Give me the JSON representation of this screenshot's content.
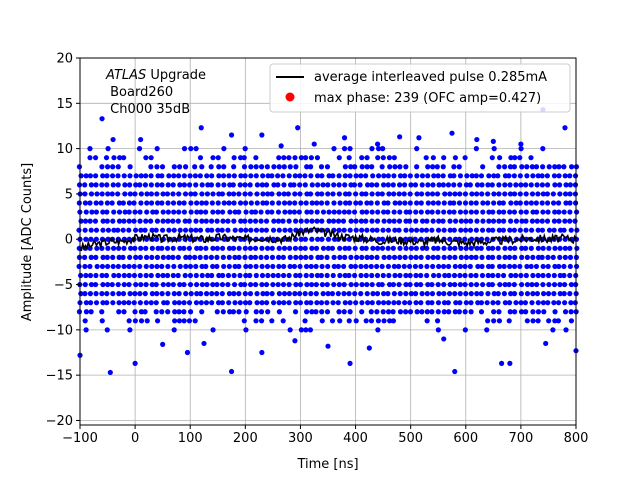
{
  "chart_data": {
    "type": "scatter",
    "xlabel": "Time [ns]",
    "ylabel": "Amplitude [ADC Counts]",
    "xlim": [
      -100,
      800
    ],
    "ylim": [
      -20.5,
      20
    ],
    "xticks": [
      -100,
      0,
      100,
      200,
      300,
      400,
      500,
      600,
      700,
      800
    ],
    "yticks": [
      -20,
      -15,
      -10,
      -5,
      0,
      5,
      10,
      15,
      20
    ],
    "grid": true,
    "legend_position": "top-right",
    "annotation": {
      "italic": "ATLAS",
      "rest": " Upgrade",
      "line2": " Board260",
      "line3": " Ch000 35dB"
    },
    "colors": {
      "samples": "#0000ff",
      "average": "#000000",
      "max_phase": "#ff0000"
    },
    "series": [
      {
        "name": "average interleaved pulse 0.285mA",
        "kind": "line",
        "color": "#000000",
        "x": [
          -100,
          -75,
          -50,
          -25,
          0,
          25,
          50,
          75,
          100,
          125,
          150,
          175,
          200,
          225,
          250,
          275,
          300,
          325,
          350,
          375,
          400,
          425,
          450,
          475,
          500,
          525,
          550,
          575,
          600,
          625,
          650,
          675,
          700,
          725,
          750,
          775,
          800
        ],
        "y": [
          -1.0,
          -0.6,
          -0.3,
          -0.2,
          0.1,
          0.3,
          0.0,
          0.2,
          0.1,
          0.0,
          0.2,
          0.1,
          0.0,
          0.2,
          0.1,
          0.0,
          0.8,
          1.0,
          0.6,
          0.3,
          0.2,
          0.0,
          -0.2,
          -0.1,
          -0.2,
          -0.3,
          -0.1,
          -0.3,
          -0.4,
          -0.3,
          -0.2,
          -0.1,
          0.0,
          0.1,
          0.0,
          0.1,
          0.0
        ]
      },
      {
        "name": "max phase: 239 (OFC amp=0.427)",
        "kind": "points",
        "color": "#ff0000",
        "x": [],
        "y": []
      },
      {
        "name": "",
        "kind": "samples",
        "color": "#0000ff",
        "x_step_ns": 10,
        "band_levels": [
          -10,
          -9,
          -8,
          -7,
          -6,
          -5,
          -4,
          -3,
          -2,
          -1,
          0,
          1,
          2,
          3,
          4,
          5,
          6,
          7,
          8,
          9,
          10
        ],
        "outliers": {
          "x": [
            -60,
            -40,
            40,
            120,
            175,
            230,
            295,
            325,
            380,
            480,
            515,
            575,
            620,
            650,
            740,
            780,
            -100,
            -45,
            0,
            50,
            95,
            175,
            230,
            290,
            390,
            425,
            580,
            665,
            680,
            745,
            800,
            10,
            125,
            265,
            350,
            440,
            560,
            700
          ],
          "y": [
            13.3,
            11.0,
            10.0,
            12.3,
            11.5,
            11.5,
            12.3,
            10.5,
            11.2,
            11.3,
            11.2,
            11.7,
            11.0,
            10.8,
            14.3,
            12.3,
            -12.8,
            -14.7,
            -13.7,
            -11.6,
            -12.5,
            -14.6,
            -12.5,
            -11.2,
            -13.7,
            -12.0,
            -14.6,
            -13.7,
            -13.7,
            -11.5,
            -12.3,
            11.0,
            -11.5,
            10.3,
            -11.8,
            10.5,
            -11.0,
            10.5
          ]
        }
      }
    ]
  }
}
